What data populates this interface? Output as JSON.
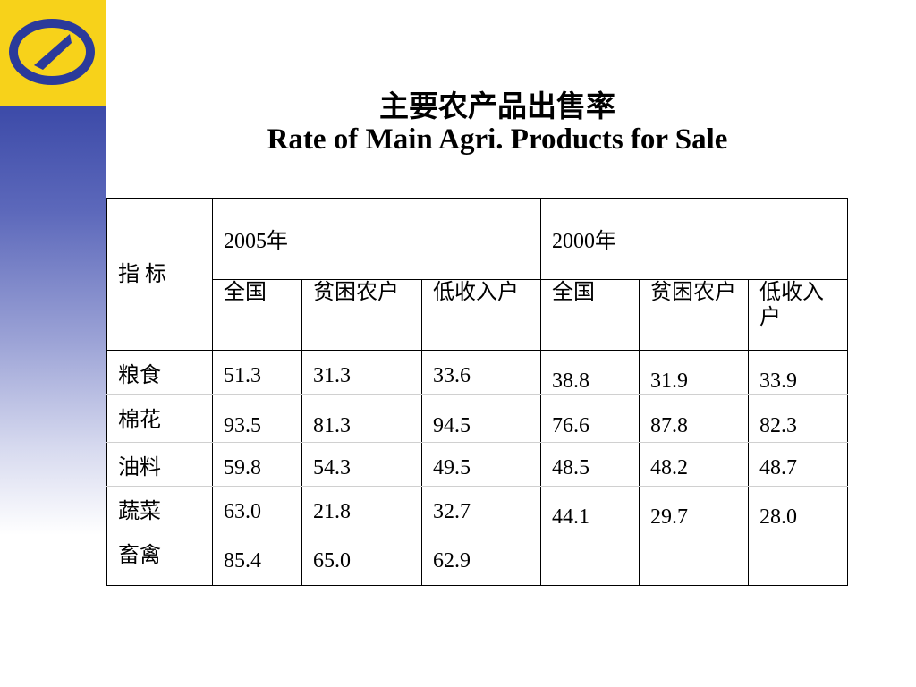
{
  "title_cn": "主要农产品出售率",
  "title_en": "Rate of Main Agri. Products for Sale",
  "table": {
    "corner_label": "指 标",
    "year_2005": "2005年",
    "year_2000": "2000年",
    "sub_headers_2005": [
      "全国",
      "贫困农户",
      "低收入户"
    ],
    "sub_headers_2000": [
      "全国",
      "贫困农户",
      "低收入户"
    ],
    "rows": [
      {
        "label": "粮食",
        "v2005": [
          "51.3",
          "31.3",
          "33.6"
        ],
        "v2000": [
          "38.8",
          "31.9",
          "33.9"
        ]
      },
      {
        "label": "棉花",
        "v2005": [
          "93.5",
          "81.3",
          "94.5"
        ],
        "v2000": [
          "76.6",
          "87.8",
          "82.3"
        ]
      },
      {
        "label": "油料",
        "v2005": [
          "59.8",
          "54.3",
          "49.5"
        ],
        "v2000": [
          "48.5",
          "48.2",
          "48.7"
        ]
      },
      {
        "label": "蔬菜",
        "v2005": [
          "63.0",
          "21.8",
          "32.7"
        ],
        "v2000": [
          "44.1",
          "29.7",
          "28.0"
        ]
      },
      {
        "label": "畜禽",
        "v2005": [
          "85.4",
          "65.0",
          "62.9"
        ],
        "v2000": [
          "",
          "",
          ""
        ]
      }
    ]
  },
  "colors": {
    "logo_bg": "#f7d21a",
    "logo_mark": "#2b3a9a",
    "strip_top": "#3c4aa8"
  }
}
